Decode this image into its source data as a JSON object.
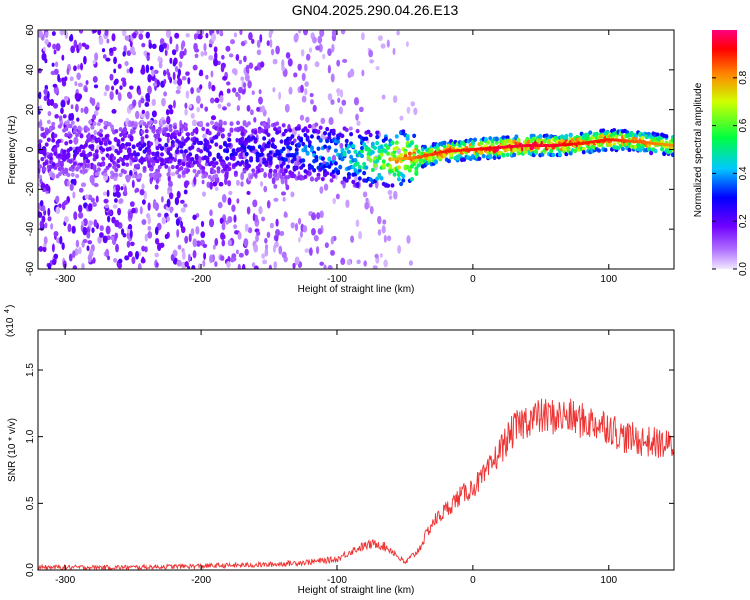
{
  "title": "GN04.2025.290.04.26.E13",
  "chart_data": [
    {
      "type": "heatmap",
      "xlabel": "Height of straight line (km)",
      "ylabel": "Frequency (Hz)",
      "xlim": [
        -320,
        148
      ],
      "ylim": [
        -60,
        60
      ],
      "xticks": [
        -300,
        -200,
        -100,
        0,
        100
      ],
      "yticks": [
        -60,
        -40,
        -20,
        0,
        20,
        40,
        60
      ],
      "colorbar": {
        "label": "Normalized spectral amplitude",
        "range": [
          0,
          1
        ],
        "ticks": [
          0.0,
          0.2,
          0.4,
          0.6,
          0.8
        ]
      },
      "ridge": {
        "description": "dominant frequency ridge vs height",
        "x": [
          -320,
          -250,
          -200,
          -150,
          -100,
          -80,
          -60,
          -40,
          -20,
          0,
          20,
          40,
          60,
          80,
          100,
          120,
          148
        ],
        "y": [
          0,
          0,
          0,
          0,
          -2,
          -5,
          -5,
          -4,
          -1,
          0,
          1,
          2,
          2,
          3,
          5,
          4,
          2
        ],
        "amplitude": [
          0.2,
          0.22,
          0.25,
          0.3,
          0.45,
          0.55,
          0.75,
          0.85,
          0.9,
          0.9,
          0.95,
          0.95,
          0.95,
          0.9,
          0.9,
          0.85,
          0.8
        ]
      }
    },
    {
      "type": "line",
      "xlabel": "Height of straight line (km)",
      "ylabel": "SNR (10 * v/v)",
      "scale_label": "(x10",
      "scale_exponent": "4",
      "xlim": [
        -320,
        148
      ],
      "ylim": [
        0,
        1.8
      ],
      "xticks": [
        -300,
        -200,
        -100,
        0,
        100
      ],
      "yticks": [
        0.0,
        0.5,
        1.0,
        1.5
      ],
      "ytick_labels": [
        "0.0",
        "0.5",
        "1.0",
        "1.5"
      ],
      "series": [
        {
          "name": "SNR",
          "color": "#ee3333",
          "x": [
            -320,
            -250,
            -200,
            -150,
            -120,
            -100,
            -90,
            -80,
            -70,
            -60,
            -50,
            -40,
            -30,
            -20,
            -10,
            0,
            10,
            20,
            30,
            40,
            50,
            60,
            70,
            80,
            90,
            100,
            110,
            120,
            130,
            148
          ],
          "values": [
            0.02,
            0.02,
            0.03,
            0.04,
            0.06,
            0.08,
            0.14,
            0.18,
            0.2,
            0.15,
            0.05,
            0.15,
            0.35,
            0.45,
            0.55,
            0.62,
            0.72,
            0.9,
            1.05,
            1.13,
            1.15,
            1.15,
            1.15,
            1.12,
            1.1,
            1.08,
            1.0,
            0.98,
            0.96,
            0.93
          ]
        }
      ]
    }
  ]
}
